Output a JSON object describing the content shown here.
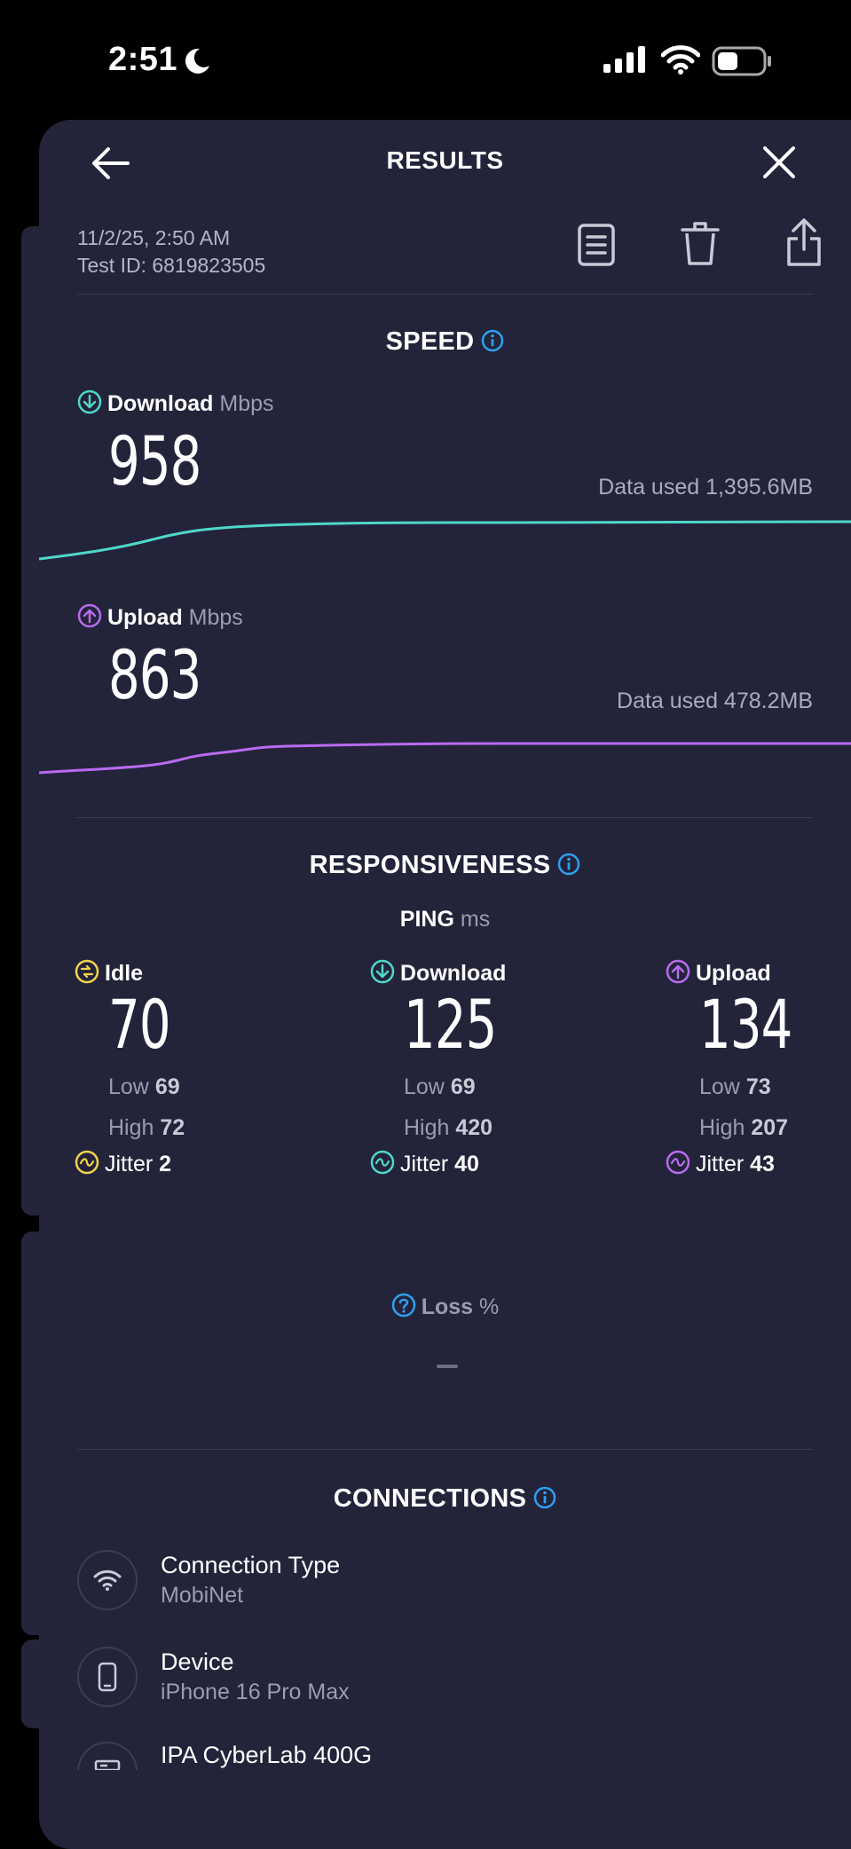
{
  "status_bar": {
    "time": "2:51"
  },
  "header": {
    "title": "RESULTS"
  },
  "meta": {
    "date": "11/2/25, 2:50 AM",
    "test_id": "Test ID: 6819823505"
  },
  "speed": {
    "title": "SPEED",
    "download": {
      "label": "Download",
      "unit": "Mbps",
      "value": "958",
      "data_used": "Data used 1,395.6MB"
    },
    "upload": {
      "label": "Upload",
      "unit": "Mbps",
      "value": "863",
      "data_used": "Data used 478.2MB"
    }
  },
  "responsiveness": {
    "title": "RESPONSIVENESS",
    "ping_label": "PING",
    "ping_unit": "ms",
    "columns": [
      {
        "label": "Idle",
        "value": "70",
        "low_label": "Low",
        "low": "69",
        "high_label": "High",
        "high": "72",
        "jitter_label": "Jitter",
        "jitter": "2"
      },
      {
        "label": "Download",
        "value": "125",
        "low_label": "Low",
        "low": "69",
        "high_label": "High",
        "high": "420",
        "jitter_label": "Jitter",
        "jitter": "40"
      },
      {
        "label": "Upload",
        "value": "134",
        "low_label": "Low",
        "low": "73",
        "high_label": "High",
        "high": "207",
        "jitter_label": "Jitter",
        "jitter": "43"
      }
    ],
    "loss_label": "Loss",
    "loss_unit": "%"
  },
  "connections": {
    "title": "CONNECTIONS",
    "items": [
      {
        "name": "Connection Type",
        "value": "MobiNet",
        "icon": "wifi-icon"
      },
      {
        "name": "Device",
        "value": "iPhone 16 Pro Max",
        "icon": "phone-icon"
      },
      {
        "name": "IPA CyberLab 400G",
        "value": "",
        "icon": "server-icon"
      }
    ]
  },
  "colors": {
    "download": "#4fd8c8",
    "upload": "#b96bf0",
    "idle": "#f0d44a",
    "info": "#2f9ff0",
    "background": "#23243a"
  }
}
